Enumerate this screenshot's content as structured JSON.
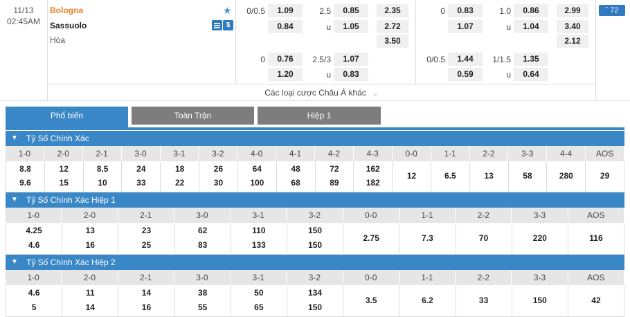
{
  "match": {
    "date": "11/13",
    "time": "02:45AM",
    "home_team": "Bologna",
    "away_team": "Sassuolo",
    "draw_label": "Hòa",
    "stats_icon": "stats-icon",
    "money_icon": "$",
    "more_bets_label": "Các loại cược Châu Á khác",
    "more_count": "72",
    "ft": {
      "hcap_line_1": "0/0.5",
      "hcap_home_1": "1.09",
      "hcap_away_1": "0.84",
      "ou_line_1": "2.5",
      "ou_over_1": "0.85",
      "ou_under_label_1": "u",
      "ou_under_1": "1.05",
      "x12_home": "2.35",
      "x12_away": "2.72",
      "x12_draw": "3.50",
      "hcap_line_2": "0",
      "hcap_home_2": "0.76",
      "hcap_away_2": "1.20",
      "ou_line_2": "2.5/3",
      "ou_over_2": "1.07",
      "ou_under_label_2": "u",
      "ou_under_2": "0.83"
    },
    "ht": {
      "hcap_line_1": "0",
      "hcap_home_1": "0.83",
      "hcap_away_1": "1.07",
      "ou_line_1": "1.0",
      "ou_over_1": "0.86",
      "ou_under_label_1": "u",
      "ou_under_1": "1.04",
      "x12_home": "2.99",
      "x12_away": "3.40",
      "x12_draw": "2.12",
      "hcap_line_2": "0/0.5",
      "hcap_home_2": "1.44",
      "hcap_away_2": "0.59",
      "ou_line_2": "1/1.5",
      "ou_over_2": "1.35",
      "ou_under_label_2": "u",
      "ou_under_2": "0.64"
    }
  },
  "tabs": [
    "Phổ biến",
    "Toàn Trận",
    "Hiệp 1"
  ],
  "sections": [
    {
      "title": "Tỷ Số Chính Xác",
      "headers": [
        "1-0",
        "2-0",
        "2-1",
        "3-0",
        "3-1",
        "3-2",
        "4-0",
        "4-1",
        "4-2",
        "4-3",
        "0-0",
        "1-1",
        "2-2",
        "3-3",
        "4-4",
        "AOS"
      ],
      "top": [
        "8.8",
        "12",
        "8.5",
        "24",
        "18",
        "26",
        "64",
        "48",
        "72",
        "162",
        "12",
        "6.5",
        "13",
        "58",
        "280",
        "29"
      ],
      "bottom": [
        "9.6",
        "15",
        "10",
        "33",
        "22",
        "30",
        "100",
        "68",
        "89",
        "182",
        "",
        "",
        "",
        "",
        "",
        ""
      ]
    },
    {
      "title": "Tỷ Số Chính Xác Hiệp 1",
      "headers": [
        "1-0",
        "2-0",
        "2-1",
        "3-0",
        "3-1",
        "3-2",
        "0-0",
        "1-1",
        "2-2",
        "3-3",
        "AOS"
      ],
      "top": [
        "4.25",
        "13",
        "23",
        "62",
        "110",
        "150",
        "2.75",
        "7.3",
        "70",
        "220",
        "116"
      ],
      "bottom": [
        "4.6",
        "16",
        "25",
        "83",
        "133",
        "150",
        "",
        "",
        "",
        "",
        ""
      ]
    },
    {
      "title": "Tỷ Số Chính Xác Hiệp 2",
      "headers": [
        "1-0",
        "2-0",
        "2-1",
        "3-0",
        "3-1",
        "3-2",
        "0-0",
        "1-1",
        "2-2",
        "3-3",
        "AOS"
      ],
      "top": [
        "4.6",
        "11",
        "14",
        "38",
        "50",
        "134",
        "3.5",
        "6.2",
        "33",
        "150",
        "42"
      ],
      "bottom": [
        "5",
        "14",
        "16",
        "55",
        "65",
        "150",
        "",
        "",
        "",
        "",
        ""
      ]
    }
  ]
}
